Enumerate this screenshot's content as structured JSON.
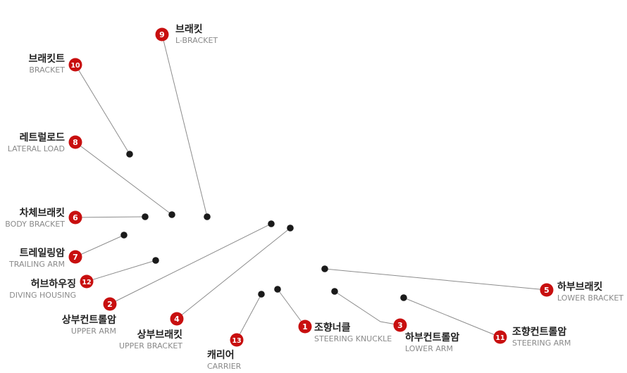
{
  "colors": {
    "badge": "#c80f0f",
    "badge_text": "#ffffff",
    "line": "#8c8c8c",
    "dot": "#1a1a1a"
  },
  "callouts": [
    {
      "num": "1",
      "ko": "조향너클",
      "en": "STEERING KNUCKLE"
    },
    {
      "num": "2",
      "ko": "상부컨트롤암",
      "en": "UPPER ARM"
    },
    {
      "num": "3",
      "ko": "하부컨트롤암",
      "en": "LOWER ARM"
    },
    {
      "num": "4",
      "ko": "상부브래킷",
      "en": "UPPER BRACKET"
    },
    {
      "num": "5",
      "ko": "하부브래킷",
      "en": "LOWER BRACKET"
    },
    {
      "num": "6",
      "ko": "차체브래킷",
      "en": "BODY BRACKET"
    },
    {
      "num": "7",
      "ko": "트레일링암",
      "en": "TRAILING ARM"
    },
    {
      "num": "8",
      "ko": "레트럴로드",
      "en": "LATERAL LOAD"
    },
    {
      "num": "9",
      "ko": "브래킷",
      "en": "L-BRACKET"
    },
    {
      "num": "10",
      "ko": "브래킷트",
      "en": "BRACKET"
    },
    {
      "num": "11",
      "ko": "조향컨트롤암",
      "en": "STEERING ARM"
    },
    {
      "num": "12",
      "ko": "허브하우징",
      "en": "DIVING HOUSING"
    },
    {
      "num": "13",
      "ko": "캐리어",
      "en": "CARRIER"
    }
  ]
}
